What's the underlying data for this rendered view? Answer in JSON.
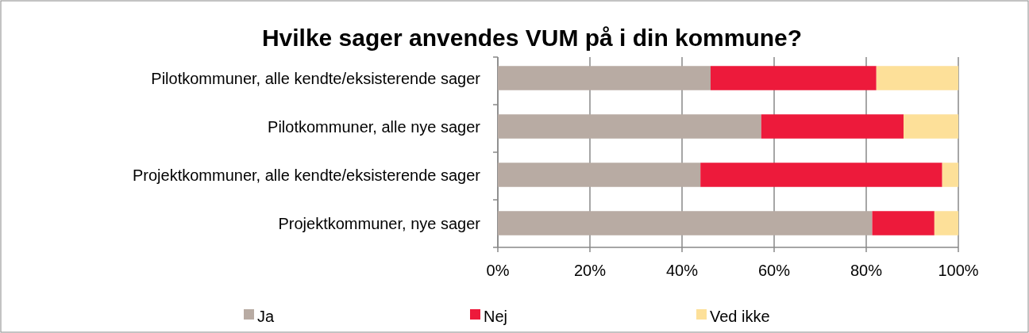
{
  "chart_data": {
    "type": "bar",
    "orientation": "horizontal",
    "stacked": true,
    "title": "Hvilke sager anvendes VUM på i din kommune?",
    "categories": [
      "Pilotkommuner, alle kendte/eksisterende sager",
      "Pilotkommuner, alle nye sager",
      "Projektkommuner, alle kendte/eksisterende sager",
      "Projektkommuner, nye sager"
    ],
    "series": [
      {
        "name": "Ja",
        "color": "#b8aba3",
        "values": [
          46.2,
          57.2,
          44,
          81.3
        ]
      },
      {
        "name": "Nej",
        "color": "#ed1a3b",
        "values": [
          36,
          30.9,
          52.5,
          13.5
        ]
      },
      {
        "name": "Ved ikke",
        "color": "#fde099",
        "values": [
          17.8,
          11.9,
          3.5,
          5.2
        ]
      }
    ],
    "xlim": [
      0,
      100
    ],
    "xticks": [
      {
        "value": 0,
        "label": "0%"
      },
      {
        "value": 20,
        "label": "20%"
      },
      {
        "value": 40,
        "label": "40%"
      },
      {
        "value": 60,
        "label": "60%"
      },
      {
        "value": 80,
        "label": "80%"
      },
      {
        "value": 100,
        "label": "100%"
      }
    ],
    "grid": "x",
    "legend": "bottom"
  }
}
